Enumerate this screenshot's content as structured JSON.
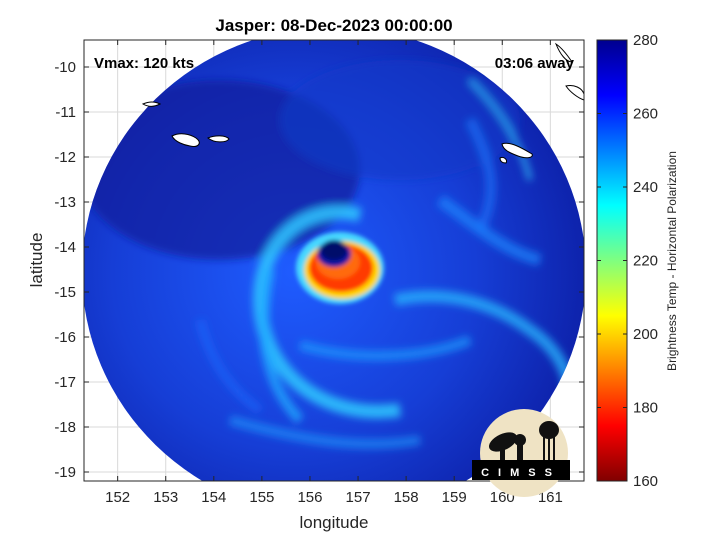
{
  "title": "Jasper: 08-Dec-2023 00:00:00",
  "vmax_label": "Vmax: 120 kts",
  "time_away_label": "03:06 away",
  "logo_text": "CIMSS",
  "axes": {
    "xlabel": "longitude",
    "ylabel": "latitude",
    "xlim": [
      151.3,
      161.7
    ],
    "ylim": [
      -19.2,
      -9.4
    ],
    "xticks": [
      152,
      153,
      154,
      155,
      156,
      157,
      158,
      159,
      160,
      161
    ],
    "yticks": [
      -10,
      -11,
      -12,
      -13,
      -14,
      -15,
      -16,
      -17,
      -18,
      -19
    ],
    "grid": true
  },
  "colorbar": {
    "label": "Brightness Temp - Horizontal Polarization",
    "range": [
      160,
      280
    ],
    "ticks": [
      160,
      180,
      200,
      220,
      240,
      260,
      280
    ],
    "colormap": "jet"
  },
  "storm": {
    "name": "Jasper",
    "center_lon": 156.6,
    "center_lat": -14.5
  },
  "colors": {
    "background": "#ffffff",
    "grid": "#d9d9d9",
    "text": "#000000",
    "swath_cold": "#0a1aa0",
    "swath_mid": "#1e66ff",
    "eyewall_hot": "#ff2200"
  }
}
